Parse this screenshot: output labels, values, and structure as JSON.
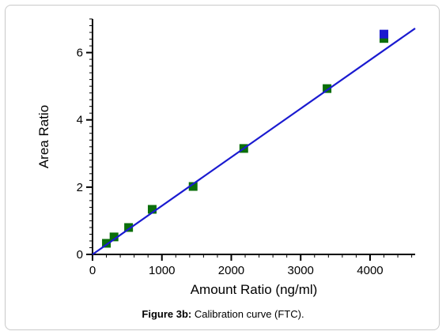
{
  "chart_data": {
    "type": "scatter",
    "xlabel": "Amount Ratio (ng/ml)",
    "ylabel": "Area Ratio",
    "xlim": [
      0,
      4650
    ],
    "ylim": [
      0,
      7
    ],
    "x_ticks": [
      0,
      1000,
      2000,
      3000,
      4000
    ],
    "y_ticks": [
      0,
      2,
      4,
      6
    ],
    "x_tick_labels": [
      "0",
      "1000",
      "2000",
      "3000",
      "4000"
    ],
    "y_tick_labels": [
      "0",
      "2",
      "4",
      "6"
    ],
    "grid": false,
    "series": [
      {
        "type": "scatter",
        "color": "#0a6e0a",
        "points": [
          {
            "x": 200,
            "y": 0.33
          },
          {
            "x": 310,
            "y": 0.52
          },
          {
            "x": 520,
            "y": 0.8
          },
          {
            "x": 860,
            "y": 1.34
          },
          {
            "x": 1450,
            "y": 2.02
          },
          {
            "x": 2180,
            "y": 3.15
          },
          {
            "x": 3380,
            "y": 4.93
          },
          {
            "x": 4200,
            "y": 6.42
          }
        ]
      },
      {
        "type": "scatter",
        "color": "#1a1ad0",
        "points": [
          {
            "x": 4200,
            "y": 6.55
          }
        ]
      },
      {
        "type": "line",
        "color": "#1a1ad0",
        "points": [
          {
            "x": 0,
            "y": 0.0
          },
          {
            "x": 4650,
            "y": 6.72
          }
        ]
      }
    ]
  },
  "caption": {
    "label": "Figure 3b:",
    "text": "Calibration curve (FTC)."
  }
}
